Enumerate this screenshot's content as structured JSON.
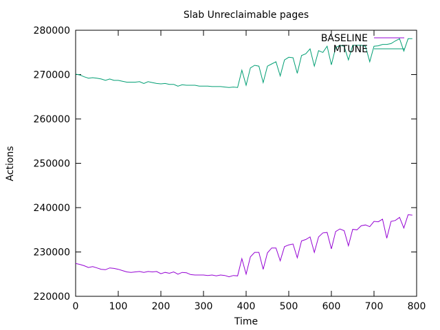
{
  "chart_data": {
    "type": "line",
    "title": "Slab Unreclaimable pages",
    "xlabel": "Time",
    "ylabel": "Actions",
    "xlim": [
      0,
      800
    ],
    "ylim": [
      220000,
      280000
    ],
    "xticks": [
      0,
      100,
      200,
      300,
      400,
      500,
      600,
      700,
      800
    ],
    "yticks": [
      220000,
      230000,
      240000,
      250000,
      260000,
      270000,
      280000
    ],
    "legend_position": "top-right",
    "grid": false,
    "series": [
      {
        "name": "BASELINE",
        "color": "#9400d3",
        "x": [
          0,
          10,
          20,
          30,
          40,
          50,
          60,
          70,
          80,
          90,
          100,
          110,
          120,
          130,
          140,
          150,
          160,
          170,
          180,
          190,
          200,
          210,
          220,
          230,
          240,
          250,
          260,
          270,
          280,
          290,
          300,
          310,
          320,
          330,
          340,
          350,
          360,
          370,
          380,
          390,
          400,
          410,
          420,
          430,
          440,
          450,
          460,
          470,
          480,
          490,
          500,
          510,
          520,
          530,
          540,
          550,
          560,
          570,
          580,
          590,
          600,
          610,
          620,
          630,
          640,
          650,
          660,
          670,
          680,
          690,
          700,
          710,
          720,
          730,
          740,
          750,
          760,
          770,
          780,
          790
        ],
        "y": [
          227400,
          227200,
          226900,
          226500,
          226700,
          226400,
          226100,
          226000,
          226400,
          226300,
          226100,
          225800,
          225500,
          225400,
          225500,
          225600,
          225400,
          225600,
          225500,
          225600,
          225100,
          225400,
          225200,
          225500,
          225000,
          225400,
          225300,
          224900,
          224800,
          224800,
          224800,
          224700,
          224800,
          224600,
          224800,
          224700,
          224400,
          224700,
          224600,
          228500,
          225000,
          228900,
          229900,
          229900,
          226100,
          229800,
          230900,
          230900,
          228000,
          231200,
          231600,
          231800,
          228700,
          232500,
          232800,
          233400,
          229900,
          233400,
          234300,
          234400,
          230700,
          234600,
          235200,
          234800,
          231400,
          235100,
          235000,
          235900,
          236100,
          235700,
          236900,
          236800,
          237400,
          233100,
          236900,
          237100,
          237800,
          235400,
          238400,
          238300
        ]
      },
      {
        "name": "MTUNE",
        "color": "#009e73",
        "x": [
          0,
          10,
          20,
          30,
          40,
          50,
          60,
          70,
          80,
          90,
          100,
          110,
          120,
          130,
          140,
          150,
          160,
          170,
          180,
          190,
          200,
          210,
          220,
          230,
          240,
          250,
          260,
          270,
          280,
          290,
          300,
          310,
          320,
          330,
          340,
          350,
          360,
          370,
          380,
          390,
          400,
          410,
          420,
          430,
          440,
          450,
          460,
          470,
          480,
          490,
          500,
          510,
          520,
          530,
          540,
          550,
          560,
          570,
          580,
          590,
          600,
          610,
          620,
          630,
          640,
          650,
          660,
          670,
          680,
          690,
          700,
          710,
          720,
          730,
          740,
          750,
          760,
          770,
          780,
          790
        ],
        "y": [
          270100,
          269900,
          269500,
          269200,
          269300,
          269200,
          269000,
          268700,
          269000,
          268700,
          268700,
          268500,
          268300,
          268300,
          268300,
          268400,
          268000,
          268400,
          268200,
          268000,
          267900,
          268000,
          267800,
          267800,
          267400,
          267700,
          267600,
          267600,
          267600,
          267400,
          267400,
          267400,
          267300,
          267300,
          267300,
          267200,
          267100,
          267200,
          267100,
          271000,
          267600,
          271500,
          272100,
          271900,
          268200,
          271900,
          272400,
          272900,
          269700,
          273300,
          273900,
          273800,
          270300,
          274300,
          274700,
          275800,
          271900,
          275400,
          275000,
          276400,
          272200,
          276100,
          276600,
          276400,
          273300,
          276600,
          276600,
          276600,
          276400,
          272900,
          276400,
          276500,
          276800,
          276800,
          277000,
          277600,
          278100,
          275300,
          278100,
          278100
        ]
      }
    ]
  }
}
